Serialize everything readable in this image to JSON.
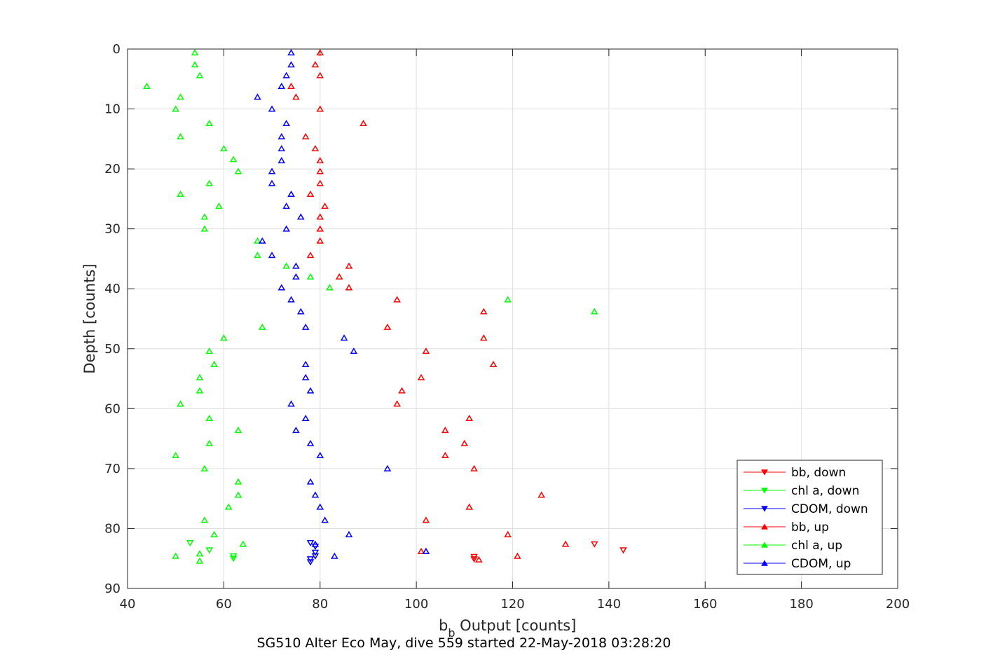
{
  "chart_data": {
    "type": "scatter",
    "title": "SG510 Alter Eco May, dive 559 started 22-May-2018 03:28:20",
    "xlabel_main": "b",
    "xlabel_sub": "b",
    "xlabel_rest": " Output [counts]",
    "ylabel": "Depth [counts]",
    "xlim": [
      40,
      200
    ],
    "ylim": [
      0,
      90
    ],
    "y_reversed": true,
    "grid": true,
    "xticks": [
      40,
      60,
      80,
      100,
      120,
      140,
      160,
      180,
      200
    ],
    "yticks": [
      0,
      10,
      20,
      30,
      40,
      50,
      60,
      70,
      80,
      90
    ],
    "legend_position": "bottom-right",
    "series": [
      {
        "name": "bb, down",
        "color": "#ff0000",
        "marker": "down",
        "points": [
          [
            137,
            82.6
          ],
          [
            143,
            83.6
          ],
          [
            112,
            84.7
          ],
          [
            112,
            85.1
          ]
        ]
      },
      {
        "name": "chl a, down",
        "color": "#00ff00",
        "marker": "down",
        "points": [
          [
            53,
            82.4
          ],
          [
            57,
            83.6
          ],
          [
            62,
            84.6
          ],
          [
            62,
            85.0
          ]
        ]
      },
      {
        "name": "CDOM, down",
        "color": "#0000ff",
        "marker": "down",
        "points": [
          [
            78,
            82.4
          ],
          [
            79,
            83.0
          ],
          [
            79,
            84.0
          ],
          [
            79,
            84.6
          ],
          [
            78,
            85.1
          ],
          [
            78,
            85.6
          ]
        ]
      },
      {
        "name": "bb, up",
        "color": "#ff0000",
        "marker": "up",
        "points": [
          [
            80,
            0.6
          ],
          [
            79,
            2.6
          ],
          [
            80,
            4.4
          ],
          [
            74,
            6.2
          ],
          [
            75,
            8.0
          ],
          [
            80,
            10.0
          ],
          [
            89,
            12.4
          ],
          [
            77,
            14.6
          ],
          [
            79,
            16.6
          ],
          [
            80,
            18.6
          ],
          [
            80,
            20.4
          ],
          [
            80,
            22.4
          ],
          [
            78,
            24.2
          ],
          [
            81,
            26.2
          ],
          [
            80,
            28.0
          ],
          [
            80,
            30.0
          ],
          [
            80,
            32.0
          ],
          [
            78,
            34.4
          ],
          [
            86,
            36.2
          ],
          [
            84,
            38.0
          ],
          [
            86,
            39.8
          ],
          [
            96,
            41.8
          ],
          [
            114,
            43.8
          ],
          [
            94,
            46.4
          ],
          [
            114,
            48.2
          ],
          [
            102,
            50.4
          ],
          [
            116,
            52.6
          ],
          [
            101,
            54.8
          ],
          [
            97,
            57.0
          ],
          [
            96,
            59.2
          ],
          [
            111,
            61.6
          ],
          [
            106,
            63.6
          ],
          [
            110,
            65.8
          ],
          [
            106,
            67.8
          ],
          [
            112,
            70.0
          ],
          [
            126,
            74.4
          ],
          [
            111,
            76.4
          ],
          [
            102,
            78.6
          ],
          [
            119,
            81.0
          ],
          [
            131,
            82.6
          ],
          [
            101,
            83.8
          ],
          [
            102,
            83.8
          ],
          [
            121,
            84.6
          ],
          [
            113,
            85.2
          ]
        ]
      },
      {
        "name": "chl a, up",
        "color": "#00ff00",
        "marker": "up",
        "points": [
          [
            54,
            0.6
          ],
          [
            54,
            2.6
          ],
          [
            55,
            4.4
          ],
          [
            44,
            6.2
          ],
          [
            51,
            8.0
          ],
          [
            50,
            10.0
          ],
          [
            57,
            12.4
          ],
          [
            51,
            14.6
          ],
          [
            60,
            16.6
          ],
          [
            62,
            18.4
          ],
          [
            63,
            20.4
          ],
          [
            57,
            22.4
          ],
          [
            51,
            24.2
          ],
          [
            59,
            26.2
          ],
          [
            56,
            28.0
          ],
          [
            56,
            30.0
          ],
          [
            67,
            32.0
          ],
          [
            67,
            34.4
          ],
          [
            73,
            36.2
          ],
          [
            78,
            38.0
          ],
          [
            82,
            39.8
          ],
          [
            119,
            41.8
          ],
          [
            137,
            43.8
          ],
          [
            68,
            46.4
          ],
          [
            60,
            48.2
          ],
          [
            57,
            50.4
          ],
          [
            58,
            52.6
          ],
          [
            55,
            54.8
          ],
          [
            55,
            57.0
          ],
          [
            51,
            59.2
          ],
          [
            57,
            61.6
          ],
          [
            63,
            63.6
          ],
          [
            57,
            65.8
          ],
          [
            50,
            67.8
          ],
          [
            56,
            70.0
          ],
          [
            63,
            72.2
          ],
          [
            63,
            74.4
          ],
          [
            61,
            76.4
          ],
          [
            56,
            78.6
          ],
          [
            58,
            81.0
          ],
          [
            64,
            82.6
          ],
          [
            55,
            84.2
          ],
          [
            50,
            84.6
          ],
          [
            55,
            85.4
          ]
        ]
      },
      {
        "name": "CDOM, up",
        "color": "#0000ff",
        "marker": "up",
        "points": [
          [
            74,
            0.6
          ],
          [
            74,
            2.6
          ],
          [
            73,
            4.4
          ],
          [
            72,
            6.2
          ],
          [
            67,
            8.0
          ],
          [
            70,
            10.0
          ],
          [
            73,
            12.4
          ],
          [
            72,
            14.6
          ],
          [
            72,
            16.6
          ],
          [
            72,
            18.6
          ],
          [
            70,
            20.4
          ],
          [
            70,
            22.4
          ],
          [
            74,
            24.2
          ],
          [
            73,
            26.2
          ],
          [
            76,
            28.0
          ],
          [
            73,
            30.0
          ],
          [
            68,
            32.0
          ],
          [
            70,
            34.4
          ],
          [
            75,
            36.2
          ],
          [
            75,
            38.0
          ],
          [
            72,
            39.8
          ],
          [
            74,
            41.8
          ],
          [
            76,
            43.8
          ],
          [
            77,
            46.4
          ],
          [
            85,
            48.2
          ],
          [
            87,
            50.4
          ],
          [
            77,
            52.6
          ],
          [
            77,
            54.8
          ],
          [
            78,
            57.0
          ],
          [
            74,
            59.2
          ],
          [
            77,
            61.6
          ],
          [
            75,
            63.6
          ],
          [
            78,
            65.8
          ],
          [
            80,
            67.8
          ],
          [
            94,
            70.0
          ],
          [
            78,
            72.2
          ],
          [
            79,
            74.4
          ],
          [
            80,
            76.4
          ],
          [
            81,
            78.6
          ],
          [
            86,
            81.0
          ],
          [
            79,
            82.6
          ],
          [
            102,
            83.8
          ],
          [
            83,
            84.6
          ]
        ]
      }
    ]
  }
}
